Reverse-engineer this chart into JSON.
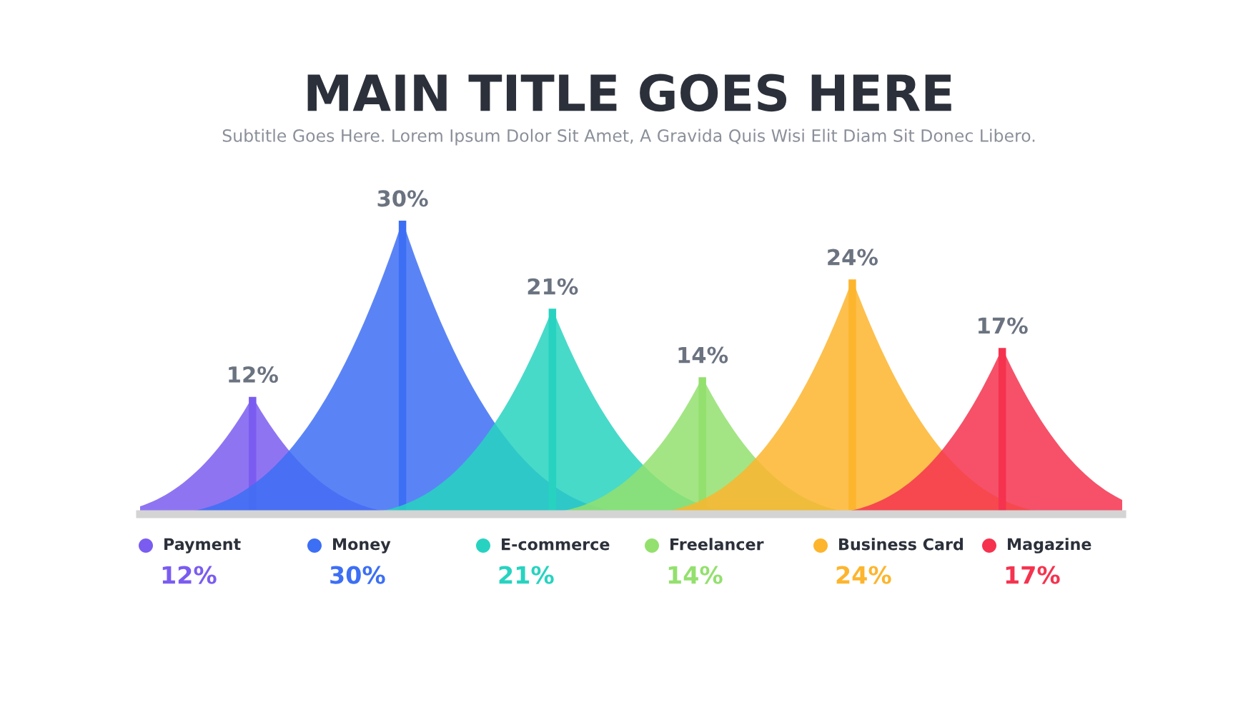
{
  "chart_data": {
    "type": "bar",
    "title": "MAIN TITLE GOES HERE",
    "subtitle": "Subtitle Goes Here. Lorem Ipsum Dolor Sit Amet, A Gravida Quis Wisi Elit Diam Sit Donec Libero.",
    "categories": [
      "Payment",
      "Money",
      "E-commerce",
      "Freelancer",
      "Business Card",
      "Magazine"
    ],
    "values": [
      12,
      30,
      21,
      14,
      24,
      17
    ],
    "value_labels": [
      "12%",
      "30%",
      "21%",
      "14%",
      "24%",
      "17%"
    ],
    "colors": [
      "#7b5cf0",
      "#3d6ff5",
      "#27d3c0",
      "#93e06e",
      "#fdb52e",
      "#f5334f"
    ]
  }
}
